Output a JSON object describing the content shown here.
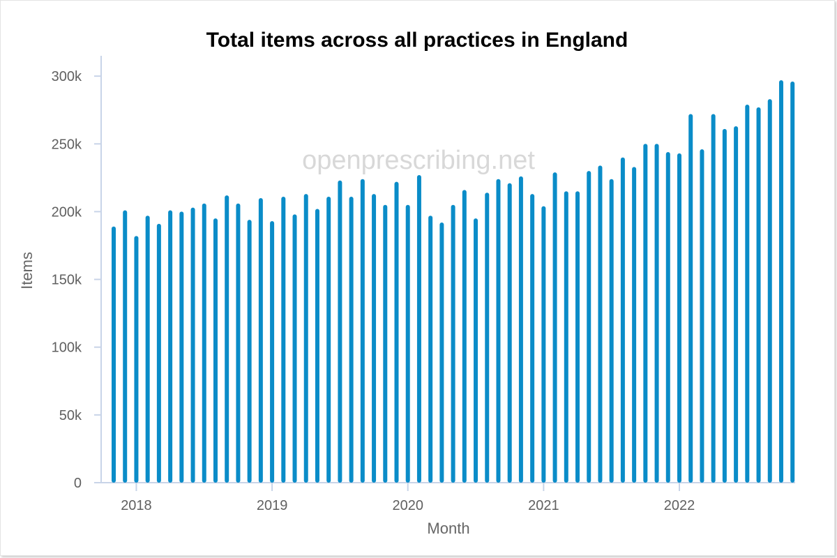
{
  "chart_data": {
    "type": "bar",
    "title": "Total items across all practices in England",
    "xlabel": "Month",
    "ylabel": "Items",
    "watermark": "openprescribing.net",
    "ylim": [
      0,
      315000
    ],
    "y_ticks": [
      0,
      50000,
      100000,
      150000,
      200000,
      250000,
      300000
    ],
    "y_tick_labels": [
      "0",
      "50k",
      "100k",
      "150k",
      "200k",
      "250k",
      "300k"
    ],
    "x_tick_labels": [
      "2018",
      "2019",
      "2020",
      "2021",
      "2022"
    ],
    "grid": false,
    "bar_color": "#0a8cc8",
    "axis_color": "#c8d4e8",
    "x_start": "2017-11",
    "x_end": "2022-11",
    "series": [
      {
        "values": [
          189000,
          201000,
          182000,
          197000,
          191000,
          201000,
          200000,
          203000,
          206000,
          195000,
          212000,
          206000,
          194000,
          210000,
          193000,
          211000,
          198000,
          213000,
          202000,
          211000,
          223000,
          211000,
          224000,
          213000,
          205000,
          222000,
          205000,
          227000,
          197000,
          192000,
          205000,
          216000,
          195000,
          214000,
          224000,
          221000,
          226000,
          213000,
          204000,
          229000,
          215000,
          215000,
          230000,
          234000,
          224000,
          240000,
          233000,
          250000,
          250000,
          244000,
          243000,
          272000,
          246000,
          272000,
          261000,
          263000,
          279000,
          277000,
          283000,
          297000,
          296000
        ]
      }
    ]
  }
}
